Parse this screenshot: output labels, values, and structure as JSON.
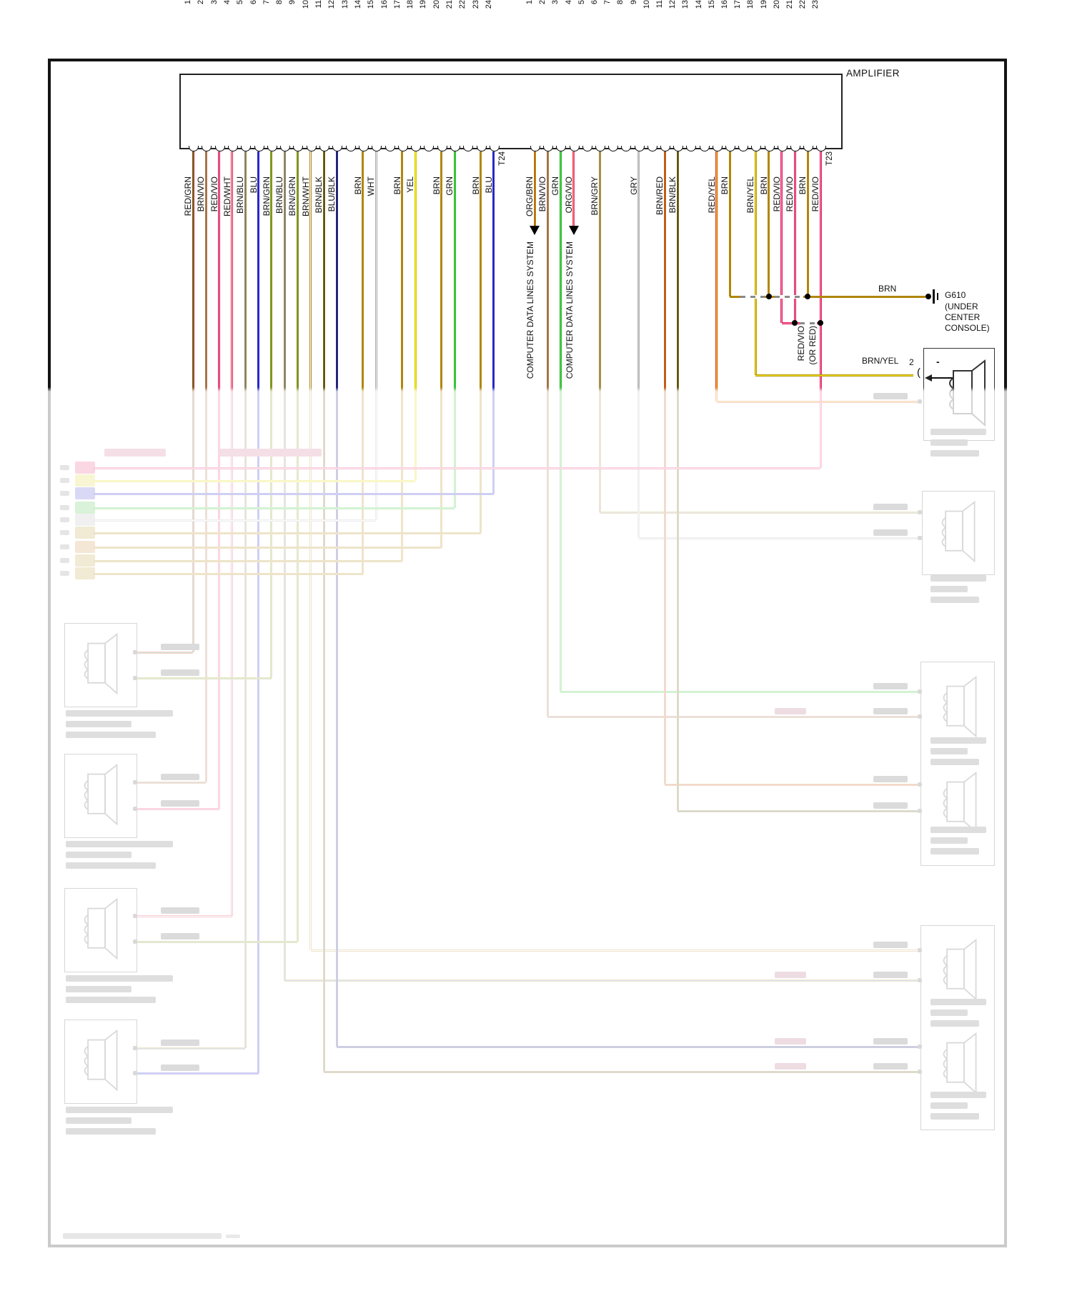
{
  "amplifier": {
    "label": "AMPLIFIER"
  },
  "connectors": [
    {
      "id": "t24",
      "label": "T24",
      "pins": [
        {
          "n": 1,
          "label": "RED/GRN"
        },
        {
          "n": 2,
          "label": "BRN/VIO"
        },
        {
          "n": 3,
          "label": "RED/VIO"
        },
        {
          "n": 4,
          "label": "RED/WHT"
        },
        {
          "n": 5,
          "label": "BRN/BLU"
        },
        {
          "n": 6,
          "label": "BLU"
        },
        {
          "n": 7,
          "label": "BRN/GRN"
        },
        {
          "n": 8,
          "label": "BRN/BLU"
        },
        {
          "n": 9,
          "label": "BRN/GRN"
        },
        {
          "n": 10,
          "label": "BRN/WHT"
        },
        {
          "n": 11,
          "label": "BRN/BLK"
        },
        {
          "n": 12,
          "label": "BLU/BLK"
        },
        {
          "n": 13,
          "label": ""
        },
        {
          "n": 14,
          "label": "BRN"
        },
        {
          "n": 15,
          "label": "WHT"
        },
        {
          "n": 16,
          "label": ""
        },
        {
          "n": 17,
          "label": "BRN"
        },
        {
          "n": 18,
          "label": "YEL"
        },
        {
          "n": 19,
          "label": ""
        },
        {
          "n": 20,
          "label": "BRN"
        },
        {
          "n": 21,
          "label": "GRN"
        },
        {
          "n": 22,
          "label": ""
        },
        {
          "n": 23,
          "label": "BRN"
        },
        {
          "n": 24,
          "label": "BLU"
        }
      ]
    },
    {
      "id": "t23",
      "label": "T23",
      "pins": [
        {
          "n": 1,
          "label": "ORG/BRN"
        },
        {
          "n": 2,
          "label": "BRN/VIO"
        },
        {
          "n": 3,
          "label": "GRN"
        },
        {
          "n": 4,
          "label": "ORG/VIO"
        },
        {
          "n": 5,
          "label": ""
        },
        {
          "n": 6,
          "label": "BRN/GRY"
        },
        {
          "n": 7,
          "label": ""
        },
        {
          "n": 8,
          "label": ""
        },
        {
          "n": 9,
          "label": "GRY"
        },
        {
          "n": 10,
          "label": ""
        },
        {
          "n": 11,
          "label": "BRN/RED"
        },
        {
          "n": 12,
          "label": "BRN/BLK"
        },
        {
          "n": 13,
          "label": ""
        },
        {
          "n": 14,
          "label": ""
        },
        {
          "n": 15,
          "label": "RED/YEL"
        },
        {
          "n": 16,
          "label": "BRN"
        },
        {
          "n": 17,
          "label": ""
        },
        {
          "n": 18,
          "label": "BRN/YEL"
        },
        {
          "n": 19,
          "label": "BRN"
        },
        {
          "n": 20,
          "label": "RED/VIO"
        },
        {
          "n": 21,
          "label": "RED/VIO"
        },
        {
          "n": 22,
          "label": "BRN"
        },
        {
          "n": 23,
          "label": "RED/VIO"
        }
      ]
    }
  ],
  "notes": {
    "data_lines": "COMPUTER DATA LINES SYSTEM",
    "ground_wire": "BRN",
    "ground_id": "G610",
    "ground_loc": [
      "(UNDER",
      "CENTER",
      "CONSOLE)"
    ],
    "redvio_line1": "RED/VIO",
    "redvio_line2": "(OR RED)",
    "speaker_wire": "BRN/YEL",
    "speaker_pin": "2",
    "speaker_polarity": "-"
  },
  "wire_colors": {
    "RED/GRN": [
      "#bb3222",
      "#3a8a28"
    ],
    "BRN/VIO": [
      "#b08616",
      "#9a55b0"
    ],
    "RED/VIO": [
      "#e21a5e",
      "#f090b8"
    ],
    "RED/WHT": [
      "#dc1440",
      "#ffffff"
    ],
    "BRN/BLU": [
      "#a88a30",
      "#6080c0"
    ],
    "BLU": [
      "#2828c8",
      "#2828c8"
    ],
    "BRN/GRN": [
      "#96871c",
      "#5ab020"
    ],
    "BRN/WHT": [
      "#b08a20",
      "#ffffff"
    ],
    "BRN/BLK": [
      "#8a7410",
      "#333322"
    ],
    "BLU/BLK": [
      "#2830b0",
      "#181828"
    ],
    "BRN": [
      "#b2860b",
      "#b2860b"
    ],
    "WHT": [
      "#aaaaaa",
      "#f2f2f2"
    ],
    "YEL": [
      "#d8cc00",
      "#f6ee00"
    ],
    "GRN": [
      "#28b428",
      "#50d850"
    ],
    "GRY": [
      "#b4b4b4",
      "#c9c9c9"
    ],
    "ORG/BRN": [
      "#e89018",
      "#7a5200"
    ],
    "ORG/VIO": [
      "#e83a98",
      "#f09018"
    ],
    "BRN/GRY": [
      "#a8881c",
      "#9a9a9a"
    ],
    "BRN/RED": [
      "#c87818",
      "#c03018"
    ],
    "RED/YEL": [
      "#e03818",
      "#e8d800"
    ],
    "BRN/YEL": [
      "#b89a00",
      "#f0e000"
    ]
  }
}
